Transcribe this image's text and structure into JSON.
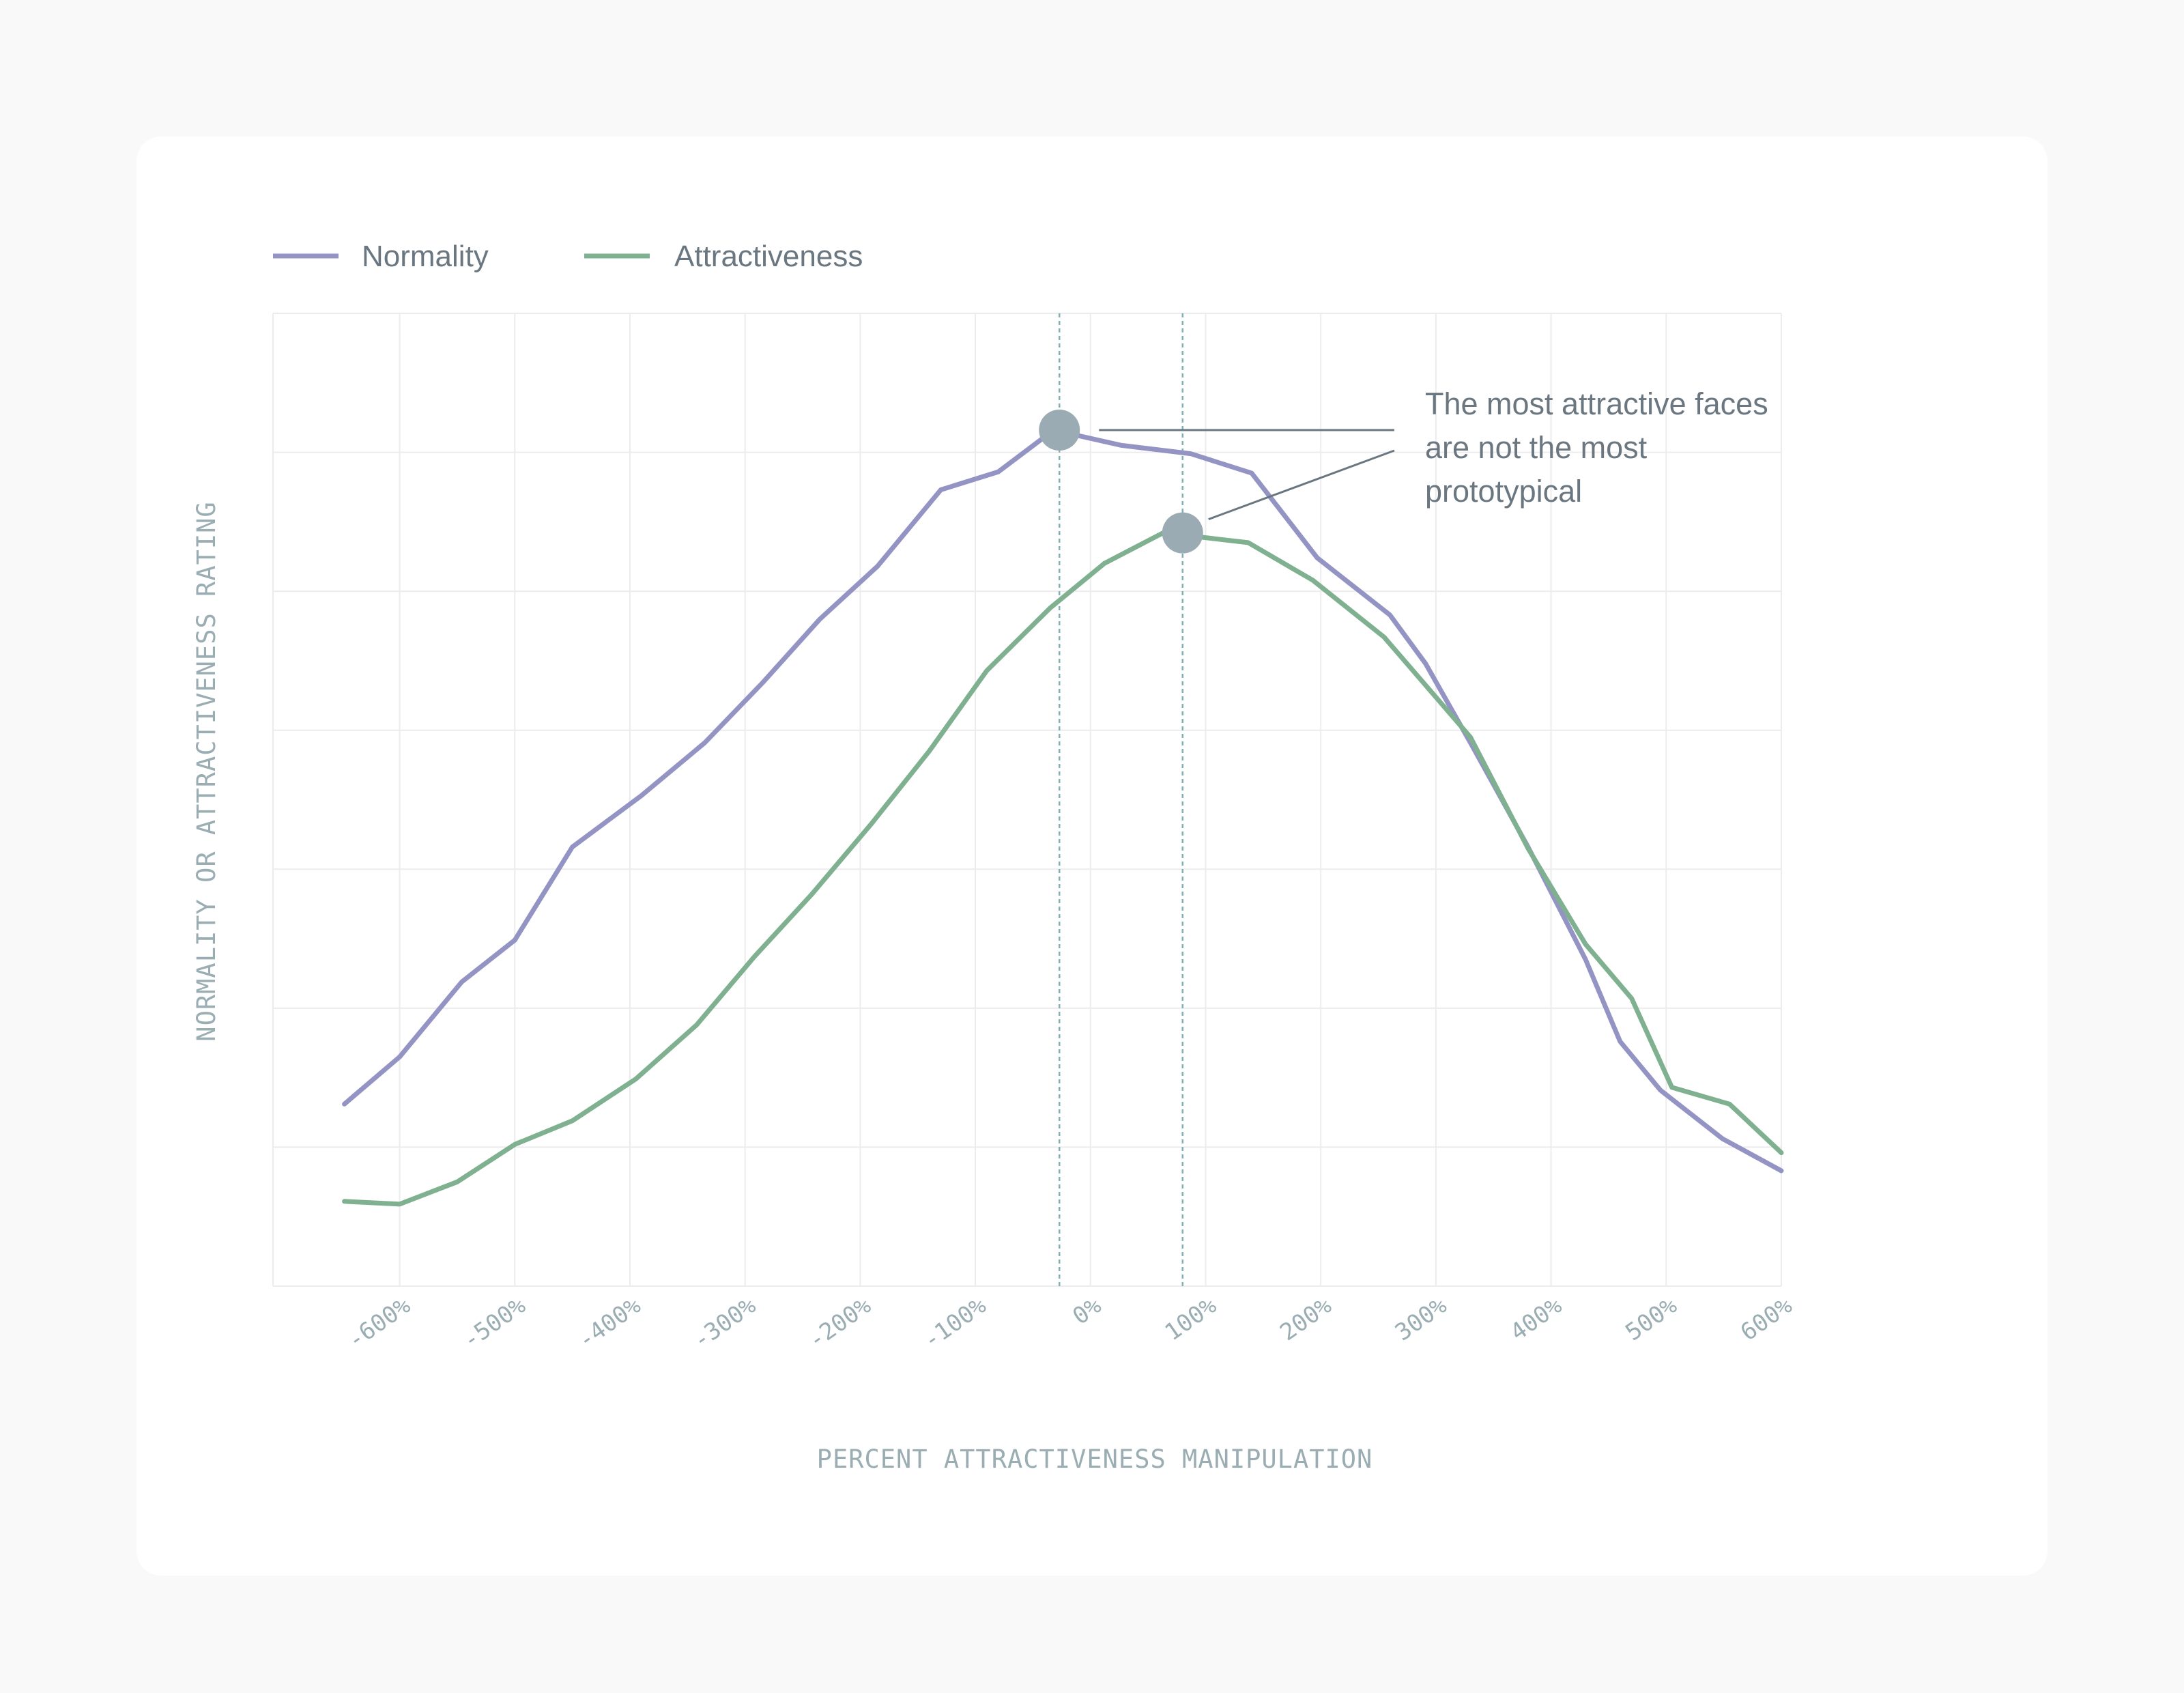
{
  "chart_data": {
    "type": "line",
    "title": "",
    "xlabel": "PERCENT ATTRACTIVENESS MANIPULATION",
    "ylabel": "NORMALITY OR ATTRACTIVENESS RATING",
    "xlim": [
      -710,
      600
    ],
    "ylim": [
      0,
      7
    ],
    "grid": true,
    "legend_position": "top-left",
    "x_ticks": [
      -600,
      -500,
      -400,
      -300,
      -200,
      -100,
      0,
      100,
      200,
      300,
      400,
      500,
      600
    ],
    "x_tick_labels": [
      "-600%",
      "-500%",
      "-400%",
      "-300%",
      "-200%",
      "-100%",
      "0%",
      "100%",
      "200%",
      "300%",
      "400%",
      "500%",
      "600%"
    ],
    "series": [
      {
        "name": "Normality",
        "color": "#9494c4",
        "points": [
          [
            -648,
            1.31
          ],
          [
            -600,
            1.65
          ],
          [
            -546,
            2.19
          ],
          [
            -500,
            2.49
          ],
          [
            -450,
            3.16
          ],
          [
            -390,
            3.53
          ],
          [
            -335,
            3.91
          ],
          [
            -285,
            4.34
          ],
          [
            -235,
            4.8
          ],
          [
            -185,
            5.18
          ],
          [
            -130,
            5.73
          ],
          [
            -80,
            5.86
          ],
          [
            -32,
            6.16
          ],
          [
            27,
            6.05
          ],
          [
            87,
            5.99
          ],
          [
            140,
            5.85
          ],
          [
            197,
            5.24
          ],
          [
            260,
            4.83
          ],
          [
            291,
            4.48
          ],
          [
            330,
            3.91
          ],
          [
            380,
            3.16
          ],
          [
            430,
            2.35
          ],
          [
            460,
            1.76
          ],
          [
            495,
            1.41
          ],
          [
            549,
            1.06
          ],
          [
            600,
            0.83
          ]
        ]
      },
      {
        "name": "Attractiveness",
        "color": "#7fb08f",
        "points": [
          [
            -648,
            0.61
          ],
          [
            -600,
            0.59
          ],
          [
            -550,
            0.75
          ],
          [
            -500,
            1.02
          ],
          [
            -450,
            1.19
          ],
          [
            -395,
            1.49
          ],
          [
            -342,
            1.88
          ],
          [
            -292,
            2.37
          ],
          [
            -242,
            2.82
          ],
          [
            -190,
            3.33
          ],
          [
            -140,
            3.85
          ],
          [
            -90,
            4.43
          ],
          [
            -35,
            4.88
          ],
          [
            12,
            5.2
          ],
          [
            63,
            5.42
          ],
          [
            75,
            5.41
          ],
          [
            137,
            5.35
          ],
          [
            193,
            5.08
          ],
          [
            255,
            4.67
          ],
          [
            330,
            3.95
          ],
          [
            380,
            3.15
          ],
          [
            430,
            2.46
          ],
          [
            470,
            2.07
          ],
          [
            505,
            1.43
          ],
          [
            555,
            1.31
          ],
          [
            600,
            0.96
          ]
        ]
      }
    ],
    "highlights": [
      {
        "x": -27,
        "y": 6.16,
        "series": "Normality"
      },
      {
        "x": 80,
        "y": 5.42,
        "series": "Attractiveness"
      }
    ],
    "annotation": {
      "lines": [
        "The most attractive faces",
        "are not the most",
        "prototypical"
      ]
    }
  },
  "colors": {
    "grid": "#ececee",
    "marker": "#9aabb3",
    "dashed_line": "#7fb0b3",
    "leader": "#6b7780"
  }
}
